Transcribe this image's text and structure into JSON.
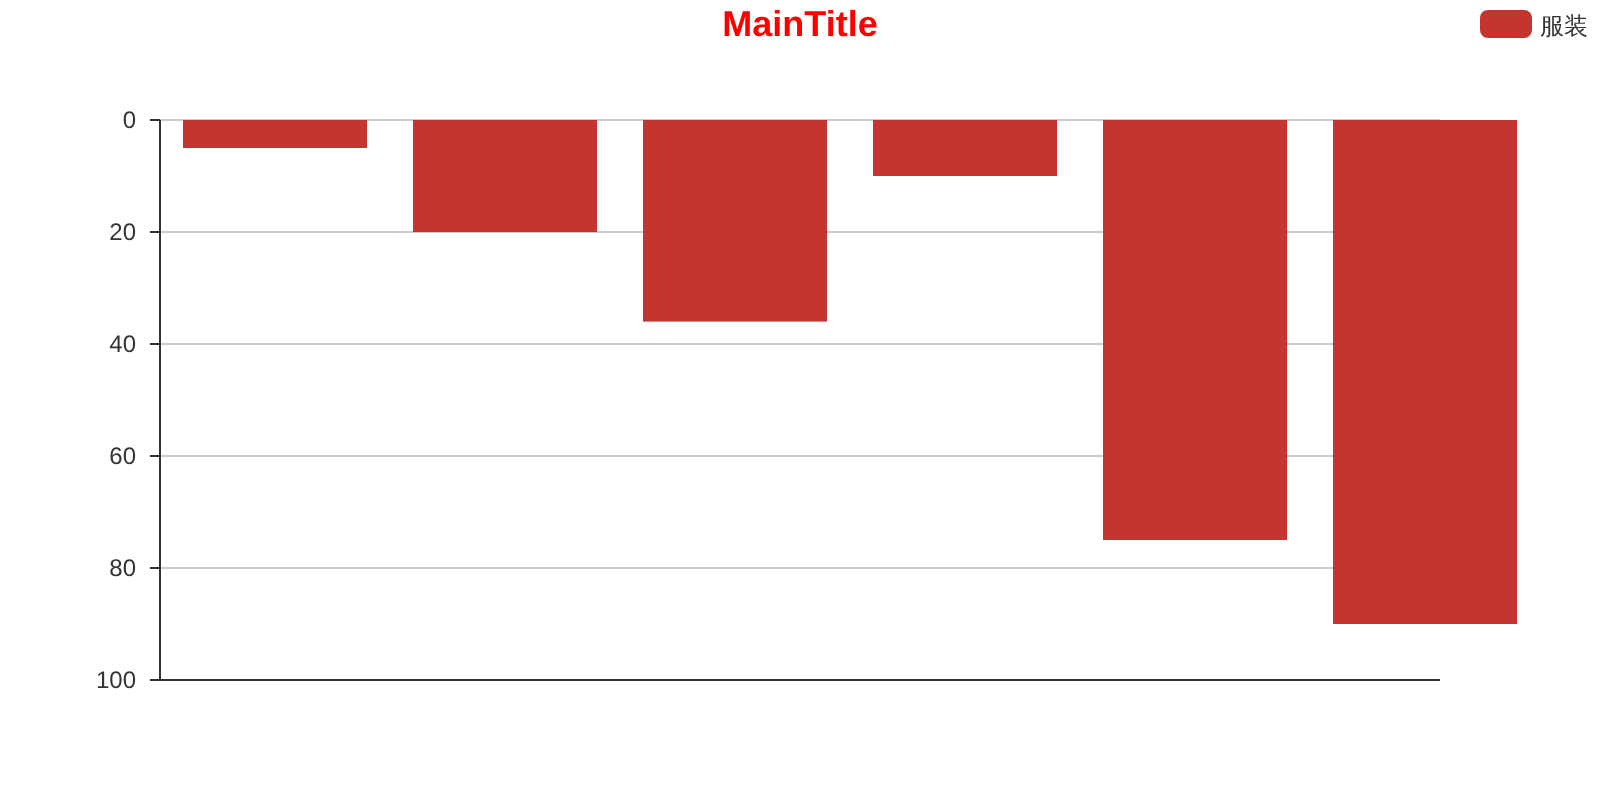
{
  "chart_data": {
    "type": "bar",
    "title": "MainTitle",
    "categories": [
      null,
      null,
      null,
      null,
      null,
      null
    ],
    "series": [
      {
        "name": "服装",
        "color": "#c23531",
        "values": [
          5,
          20,
          36,
          10,
          75,
          90
        ]
      }
    ],
    "ylim": [
      100,
      0
    ],
    "yticks": [
      0,
      20,
      40,
      60,
      80,
      100
    ],
    "grid": "y",
    "legend": "top right",
    "tick_labels": "y"
  }
}
